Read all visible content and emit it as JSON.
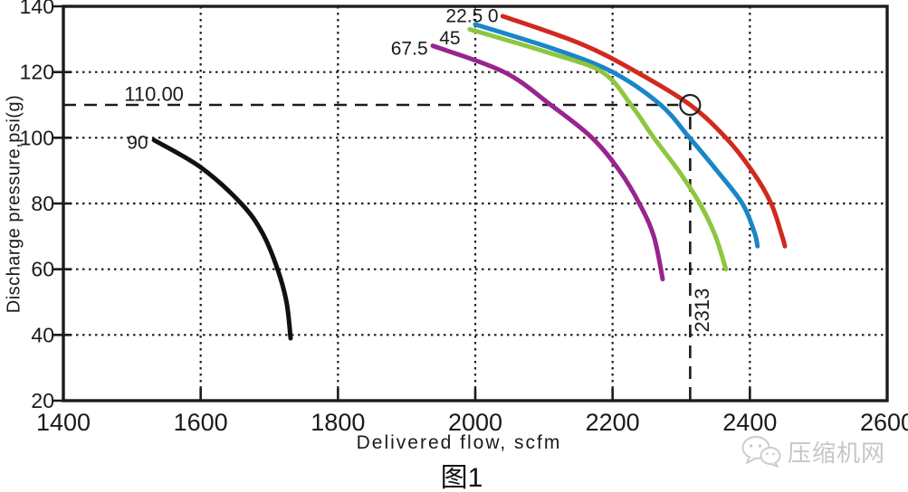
{
  "figure": {
    "caption": "图1",
    "watermark": {
      "icon": "wechat-logo",
      "text": "压缩机网"
    }
  },
  "chart_data": {
    "type": "line",
    "title": "图1",
    "xlabel": "Delivered flow, scfm",
    "ylabel": "Discharge pressure,psi(g)",
    "xlim": [
      1400,
      2600
    ],
    "ylim": [
      20,
      140
    ],
    "xticks": [
      1400,
      1600,
      1800,
      2000,
      2200,
      2400,
      2600
    ],
    "yticks": [
      20,
      40,
      60,
      80,
      100,
      120,
      140
    ],
    "grid": {
      "style": "dotted",
      "x": [
        1600,
        1800,
        2000,
        2200,
        2400
      ],
      "y": [
        40,
        60,
        80,
        100,
        120
      ]
    },
    "legend_position": "none",
    "series": [
      {
        "name": "0",
        "color": "#d02a20",
        "label_at": [
          2026,
          135.2
        ],
        "points": [
          [
            2040,
            137
          ],
          [
            2155,
            128.5
          ],
          [
            2235,
            120
          ],
          [
            2313,
            110
          ],
          [
            2365,
            100
          ],
          [
            2403,
            90
          ],
          [
            2431,
            80
          ],
          [
            2447,
            70
          ],
          [
            2451,
            67
          ]
        ]
      },
      {
        "name": "22.5",
        "color": "#1a86c8",
        "label_at": [
          1984,
          135.2
        ],
        "points": [
          [
            2000,
            134.5
          ],
          [
            2115,
            127
          ],
          [
            2200,
            120
          ],
          [
            2270,
            110
          ],
          [
            2312,
            100
          ],
          [
            2352,
            90
          ],
          [
            2389,
            80
          ],
          [
            2407,
            71
          ],
          [
            2411,
            67
          ]
        ]
      },
      {
        "name": "45",
        "color": "#8dc63f",
        "label_at": [
          1963,
          128.4
        ],
        "points": [
          [
            1992,
            133
          ],
          [
            2105,
            126
          ],
          [
            2185,
            120
          ],
          [
            2227,
            110
          ],
          [
            2260,
            100
          ],
          [
            2296,
            90
          ],
          [
            2327,
            80
          ],
          [
            2350,
            70
          ],
          [
            2365,
            60
          ]
        ]
      },
      {
        "name": "67.5",
        "color": "#98248e",
        "label_at": [
          1904,
          125.3
        ],
        "points": [
          [
            1938,
            128
          ],
          [
            2042,
            120
          ],
          [
            2110,
            110
          ],
          [
            2170,
            100
          ],
          [
            2210,
            90
          ],
          [
            2239,
            80
          ],
          [
            2260,
            70
          ],
          [
            2273,
            57
          ]
        ]
      },
      {
        "name": "90",
        "color": "#111111",
        "label_at": [
          1508,
          96.7
        ],
        "points": [
          [
            1532,
            99.3
          ],
          [
            1600,
            91
          ],
          [
            1659,
            80
          ],
          [
            1690,
            71
          ],
          [
            1712,
            60
          ],
          [
            1725,
            50
          ],
          [
            1731,
            39
          ]
        ]
      }
    ],
    "annotations": {
      "marker": {
        "x": 2313,
        "y": 110,
        "shape": "open-circle"
      },
      "hline": {
        "y": 110,
        "label": "110.00",
        "label_at": [
          1532,
          111.3
        ]
      },
      "vline": {
        "x": 2313,
        "label": "2313",
        "label_at": [
          2340,
          47.5
        ]
      }
    }
  }
}
